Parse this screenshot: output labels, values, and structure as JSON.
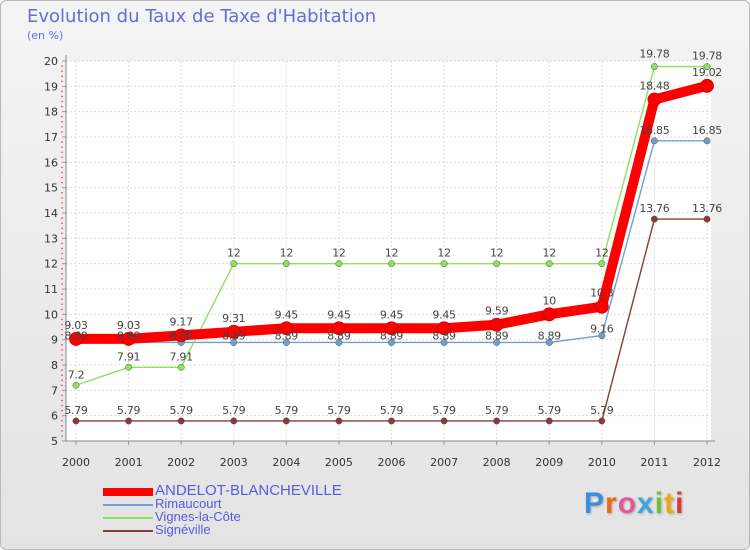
{
  "chart_data": {
    "type": "line",
    "title": "Evolution du Taux de Taxe d'Habitation",
    "subtitle": "(en %)",
    "xlabel": "",
    "ylabel": "",
    "ylim": [
      5,
      20
    ],
    "yticks": [
      "5",
      "6",
      "7",
      "8",
      "9",
      "10",
      "11",
      "12",
      "13",
      "14",
      "15",
      "16",
      "17",
      "18",
      "19",
      "20"
    ],
    "x": [
      "2000",
      "2001",
      "2002",
      "2003",
      "2004",
      "2005",
      "2006",
      "2007",
      "2008",
      "2009",
      "2010",
      "2011",
      "2012"
    ],
    "grid": true,
    "series": [
      {
        "name": "ANDELOT-BLANCHEVILLE",
        "color": "#ff0000",
        "values": [
          9.03,
          9.03,
          9.17,
          9.31,
          9.45,
          9.45,
          9.45,
          9.45,
          9.59,
          10,
          10.3,
          18.48,
          19.02
        ],
        "labels": [
          "9.03",
          "9.03",
          "9.17",
          "9.31",
          "9.45",
          "9.45",
          "9.45",
          "9.45",
          "9.59",
          "10",
          "10.3",
          "18.48",
          "19.02"
        ]
      },
      {
        "name": "Rimaucourt",
        "color": "#6f9fd0",
        "values": [
          8.89,
          8.89,
          8.89,
          8.89,
          8.89,
          8.89,
          8.89,
          8.89,
          8.89,
          8.89,
          9.16,
          16.85,
          16.85
        ],
        "labels": [
          "8.89",
          "8.89",
          "8.89",
          "8.89",
          "8.89",
          "8.89",
          "8.89",
          "8.89",
          "8.89",
          "8.89",
          "9.16",
          "16.85",
          "16.85"
        ]
      },
      {
        "name": "Vignes-la-Côte",
        "color": "#90e060",
        "values": [
          7.2,
          7.91,
          7.91,
          12,
          12,
          12,
          12,
          12,
          12,
          12,
          12,
          19.78,
          19.78
        ],
        "labels": [
          "7.2",
          "7.91",
          "7.91",
          "12",
          "12",
          "12",
          "12",
          "12",
          "12",
          "12",
          "12",
          "19.78",
          "19.78"
        ]
      },
      {
        "name": "Signéville",
        "color": "#8a3a3a",
        "values": [
          5.79,
          5.79,
          5.79,
          5.79,
          5.79,
          5.79,
          5.79,
          5.79,
          5.79,
          5.79,
          5.79,
          13.76,
          13.76
        ],
        "labels": [
          "5.79",
          "5.79",
          "5.79",
          "5.79",
          "5.79",
          "5.79",
          "5.79",
          "5.79",
          "5.79",
          "5.79",
          "5.79",
          "13.76",
          "13.76"
        ]
      }
    ]
  },
  "legend": {
    "items": [
      {
        "label": "ANDELOT-BLANCHEVILLE",
        "color": "#ff0000"
      },
      {
        "label": "Rimaucourt",
        "color": "#6f9fd0"
      },
      {
        "label": "Vignes-la-Côte",
        "color": "#90e060"
      },
      {
        "label": "Signéville",
        "color": "#8a3a3a"
      }
    ]
  },
  "brand": {
    "text": "Proxiti",
    "colors": [
      "#3a8fd8",
      "#e86a1a",
      "#e05a9a",
      "#3aa8d8",
      "#6cc03c",
      "#e8a81a",
      "#d83a3a"
    ]
  }
}
